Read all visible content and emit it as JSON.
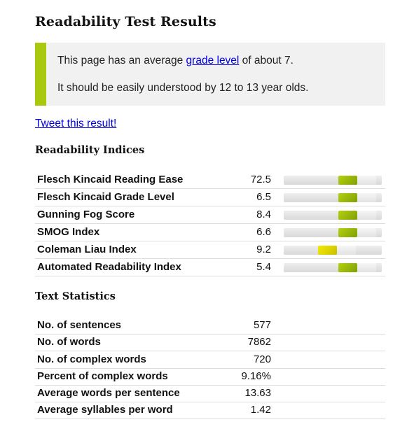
{
  "page": {
    "title": "Readability Test Results"
  },
  "summary": {
    "line1_prefix": "This page has an average ",
    "line1_link": "grade level",
    "line1_suffix": " of about 7.",
    "line2": "It should be easily understood by 12 to 13 year olds."
  },
  "tweet_link": "Tweet this result!",
  "indices": {
    "heading": "Readability Indices",
    "rows": [
      {
        "label": "Flesch Kincaid Reading Ease",
        "value": "72.5",
        "level": 0.66,
        "color": "#9ab80b"
      },
      {
        "label": "Flesch Kincaid Grade Level",
        "value": "6.5",
        "level": 0.66,
        "color": "#9ab80b"
      },
      {
        "label": "Gunning Fog Score",
        "value": "8.4",
        "level": 0.66,
        "color": "#9ab80b"
      },
      {
        "label": "SMOG Index",
        "value": "6.6",
        "level": 0.66,
        "color": "#9ab80b"
      },
      {
        "label": "Coleman Liau Index",
        "value": "9.2",
        "level": 0.45,
        "color": "#dcd100"
      },
      {
        "label": "Automated Readability Index",
        "value": "5.4",
        "level": 0.66,
        "color": "#9ab80b"
      }
    ]
  },
  "statistics": {
    "heading": "Text Statistics",
    "rows": [
      {
        "label": "No. of sentences",
        "value": "577"
      },
      {
        "label": "No. of words",
        "value": "7862"
      },
      {
        "label": "No. of complex words",
        "value": "720"
      },
      {
        "label": "Percent of complex words",
        "value": "9.16%"
      },
      {
        "label": "Average words per sentence",
        "value": "13.63"
      },
      {
        "label": "Average syllables per word",
        "value": "1.42"
      }
    ]
  }
}
